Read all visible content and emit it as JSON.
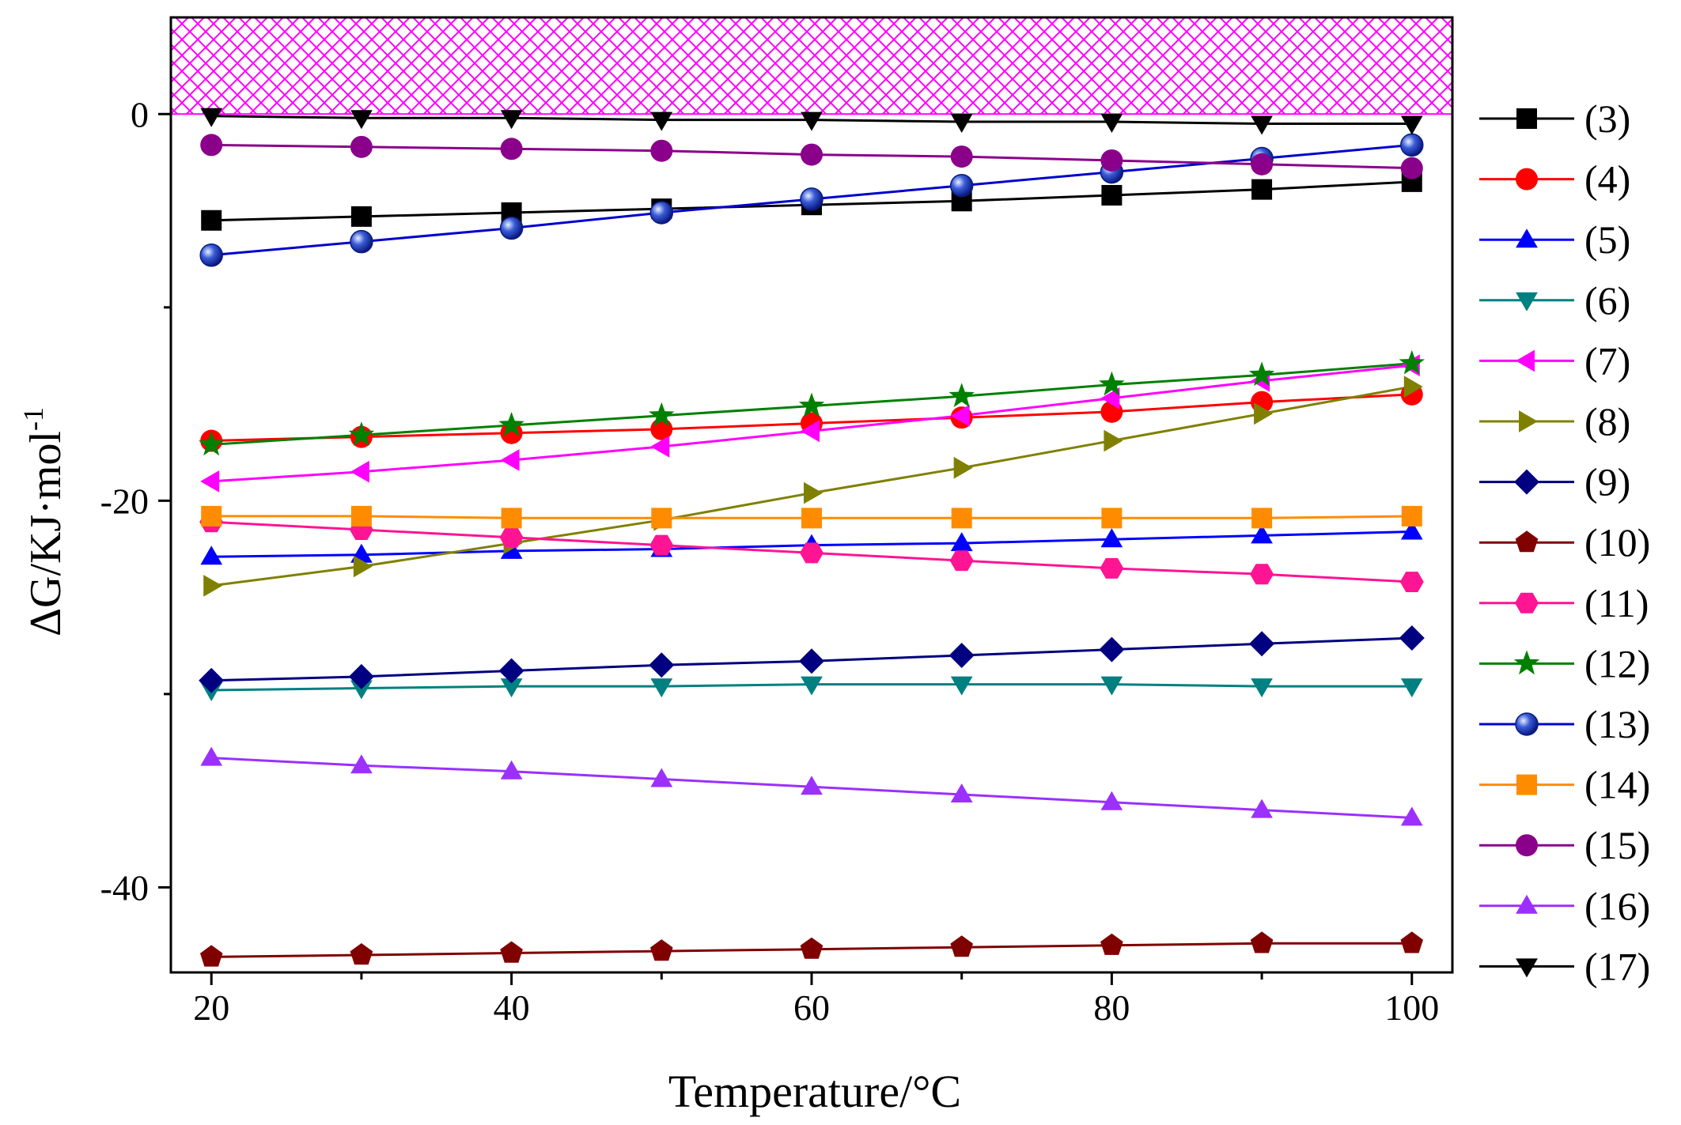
{
  "chart_data": {
    "type": "line",
    "title": "",
    "xlabel": "Temperature/°C",
    "ylabel_main": "ΔG/KJ·mol",
    "ylabel_sup": "-1",
    "xlim": [
      17.3,
      102.7
    ],
    "ylim": [
      -44.4,
      5.0
    ],
    "x": [
      20,
      30,
      40,
      50,
      60,
      70,
      80,
      90,
      100
    ],
    "xticks": [
      20,
      40,
      60,
      80,
      100
    ],
    "yticks": [
      0,
      -20,
      -40
    ],
    "shaded_region": {
      "from": 0,
      "to": 5.0,
      "pattern": "crosshatch",
      "color": "#ff00ff"
    },
    "legend_position": "right",
    "series": [
      {
        "name": "(3)",
        "color": "#000000",
        "marker": "square",
        "values": [
          -5.5,
          -5.3,
          -5.1,
          -4.9,
          -4.7,
          -4.5,
          -4.2,
          -3.9,
          -3.5
        ]
      },
      {
        "name": "(4)",
        "color": "#ff0000",
        "marker": "circle",
        "values": [
          -16.9,
          -16.7,
          -16.5,
          -16.3,
          -16.0,
          -15.7,
          -15.4,
          -14.9,
          -14.5
        ]
      },
      {
        "name": "(5)",
        "color": "#0000ff",
        "marker": "triangle-up",
        "values": [
          -22.9,
          -22.8,
          -22.6,
          -22.5,
          -22.3,
          -22.2,
          -22.0,
          -21.8,
          -21.6
        ]
      },
      {
        "name": "(6)",
        "color": "#008080",
        "marker": "triangle-down",
        "values": [
          -29.8,
          -29.7,
          -29.6,
          -29.6,
          -29.5,
          -29.5,
          -29.5,
          -29.6,
          -29.6
        ]
      },
      {
        "name": "(7)",
        "color": "#ff00ff",
        "marker": "triangle-left",
        "values": [
          -19.0,
          -18.5,
          -17.9,
          -17.2,
          -16.4,
          -15.6,
          -14.7,
          -13.8,
          -13.0
        ]
      },
      {
        "name": "(8)",
        "color": "#808000",
        "marker": "triangle-right",
        "values": [
          -24.4,
          -23.4,
          -22.2,
          -21.0,
          -19.6,
          -18.3,
          -16.9,
          -15.5,
          -14.1
        ]
      },
      {
        "name": "(9)",
        "color": "#000080",
        "marker": "diamond",
        "values": [
          -29.3,
          -29.1,
          -28.8,
          -28.5,
          -28.3,
          -28.0,
          -27.7,
          -27.4,
          -27.1
        ]
      },
      {
        "name": "(10)",
        "color": "#800000",
        "marker": "pentagon",
        "values": [
          -43.6,
          -43.5,
          -43.4,
          -43.3,
          -43.2,
          -43.1,
          -43.0,
          -42.9,
          -42.9
        ]
      },
      {
        "name": "(11)",
        "color": "#ff1493",
        "marker": "hexagon",
        "values": [
          -21.1,
          -21.5,
          -21.9,
          -22.3,
          -22.7,
          -23.1,
          -23.5,
          -23.8,
          -24.2
        ]
      },
      {
        "name": "(12)",
        "color": "#008000",
        "marker": "star",
        "values": [
          -17.1,
          -16.6,
          -16.1,
          -15.6,
          -15.1,
          -14.6,
          -14.0,
          -13.5,
          -12.9
        ]
      },
      {
        "name": "(13)",
        "color": "#0000cd",
        "marker": "sphere",
        "values": [
          -7.3,
          -6.6,
          -5.9,
          -5.1,
          -4.4,
          -3.7,
          -3.0,
          -2.3,
          -1.6
        ]
      },
      {
        "name": "(14)",
        "color": "#ff8c00",
        "marker": "square",
        "values": [
          -20.8,
          -20.8,
          -20.9,
          -20.9,
          -20.9,
          -20.9,
          -20.9,
          -20.9,
          -20.8
        ]
      },
      {
        "name": "(15)",
        "color": "#8b008b",
        "marker": "circle",
        "values": [
          -1.6,
          -1.7,
          -1.8,
          -1.9,
          -2.1,
          -2.2,
          -2.4,
          -2.6,
          -2.8
        ]
      },
      {
        "name": "(16)",
        "color": "#9b30ff",
        "marker": "triangle-up",
        "values": [
          -33.3,
          -33.7,
          -34.0,
          -34.4,
          -34.8,
          -35.2,
          -35.6,
          -36.0,
          -36.4
        ]
      },
      {
        "name": "(17)",
        "color": "#000000",
        "marker": "triangle-down",
        "values": [
          -0.1,
          -0.2,
          -0.2,
          -0.3,
          -0.3,
          -0.4,
          -0.4,
          -0.5,
          -0.5
        ]
      }
    ]
  }
}
